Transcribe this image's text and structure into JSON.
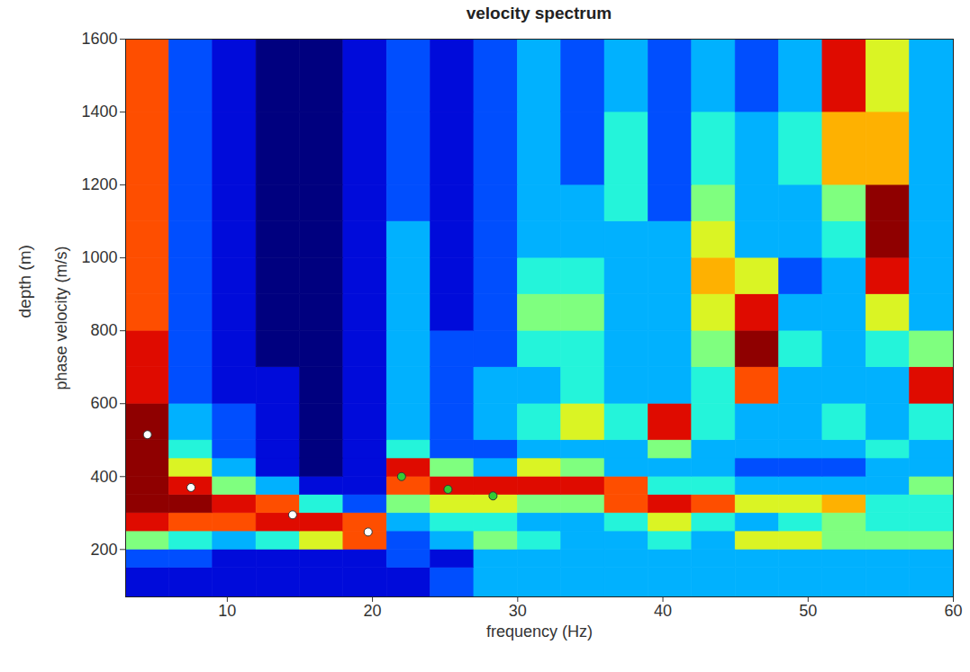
{
  "chart_data": {
    "type": "heatmap",
    "title": "velocity spectrum",
    "x_label": "frequency (Hz)",
    "y_label": "phase velocity (m/s)",
    "y_label_2": "depth (m)",
    "xlim": [
      3,
      60
    ],
    "xticks": [
      10,
      20,
      30,
      40,
      50,
      60
    ],
    "ylim": [
      70,
      1600
    ],
    "yticks": [
      200,
      400,
      600,
      800,
      1000,
      1200,
      1400,
      1600
    ],
    "grid": false,
    "heatmap": {
      "x_edges": [
        3,
        6,
        9,
        12,
        15,
        18,
        21,
        24,
        27,
        30,
        33,
        36,
        39,
        42,
        45,
        48,
        51,
        54,
        57,
        60
      ],
      "y_edges": [
        70,
        150,
        200,
        250,
        300,
        350,
        400,
        450,
        500,
        600,
        700,
        800,
        900,
        1000,
        1100,
        1200,
        1400,
        1600
      ],
      "zlim": [
        0,
        10
      ],
      "values": [
        [
          1,
          1,
          1,
          1,
          1,
          1,
          1,
          2,
          3,
          3,
          3,
          3,
          3,
          3,
          3,
          3,
          3,
          3,
          3
        ],
        [
          2,
          2,
          1,
          1,
          1,
          1,
          2,
          1,
          3,
          3,
          3,
          3,
          3,
          3,
          3,
          3,
          3,
          3,
          3
        ],
        [
          5,
          4,
          3,
          4,
          6,
          8,
          2,
          3,
          5,
          4,
          3,
          3,
          4,
          3,
          6,
          6,
          5,
          5,
          5
        ],
        [
          9,
          8,
          8,
          9,
          9,
          8,
          3,
          4,
          4,
          3,
          3,
          4,
          6,
          4,
          3,
          4,
          5,
          4,
          4
        ],
        [
          10,
          10,
          9,
          8,
          4,
          2,
          5,
          6,
          6,
          5,
          5,
          8,
          9,
          8,
          6,
          6,
          7,
          4,
          4
        ],
        [
          10,
          9,
          5,
          3,
          1,
          1,
          8,
          9,
          9,
          9,
          9,
          8,
          4,
          4,
          3,
          3,
          3,
          3,
          5
        ],
        [
          10,
          6,
          3,
          1,
          0,
          1,
          9,
          5,
          3,
          6,
          5,
          3,
          3,
          3,
          2,
          2,
          2,
          3,
          3
        ],
        [
          10,
          4,
          2,
          1,
          0,
          1,
          4,
          2,
          2,
          3,
          3,
          3,
          5,
          3,
          3,
          3,
          3,
          4,
          3
        ],
        [
          10,
          3,
          2,
          1,
          0,
          1,
          3,
          2,
          3,
          4,
          6,
          4,
          9,
          4,
          3,
          3,
          4,
          3,
          4
        ],
        [
          9,
          2,
          1,
          1,
          0,
          1,
          3,
          2,
          3,
          3,
          4,
          3,
          3,
          4,
          8,
          3,
          3,
          3,
          9
        ],
        [
          9,
          2,
          1,
          0,
          0,
          1,
          3,
          2,
          2,
          4,
          4,
          3,
          3,
          5,
          10,
          4,
          3,
          4,
          5
        ],
        [
          8,
          2,
          1,
          0,
          0,
          1,
          3,
          1,
          2,
          5,
          5,
          3,
          3,
          6,
          9,
          3,
          3,
          6,
          3
        ],
        [
          8,
          2,
          1,
          0,
          0,
          1,
          3,
          1,
          2,
          4,
          4,
          3,
          3,
          7,
          6,
          2,
          3,
          9,
          3
        ],
        [
          8,
          2,
          1,
          0,
          0,
          1,
          3,
          1,
          2,
          3,
          3,
          3,
          3,
          6,
          3,
          3,
          4,
          10,
          3
        ],
        [
          8,
          2,
          1,
          0,
          0,
          1,
          2,
          1,
          2,
          3,
          3,
          4,
          2,
          5,
          3,
          3,
          5,
          10,
          3
        ],
        [
          8,
          2,
          1,
          0,
          0,
          1,
          2,
          1,
          2,
          3,
          2,
          4,
          2,
          4,
          3,
          4,
          7,
          7,
          3
        ],
        [
          8,
          2,
          1,
          0,
          0,
          1,
          2,
          1,
          2,
          3,
          2,
          3,
          2,
          3,
          2,
          3,
          9,
          6,
          3
        ]
      ]
    },
    "series": [
      {
        "color": "#ffffff",
        "marker": "circle",
        "x": [
          4.5,
          7.5,
          14.5,
          19.7
        ],
        "y": [
          515,
          370,
          295,
          248
        ]
      },
      {
        "color": "#33cc33",
        "marker": "circle",
        "x": [
          22,
          25.2,
          28.3
        ],
        "y": [
          400,
          365,
          347
        ]
      }
    ]
  }
}
